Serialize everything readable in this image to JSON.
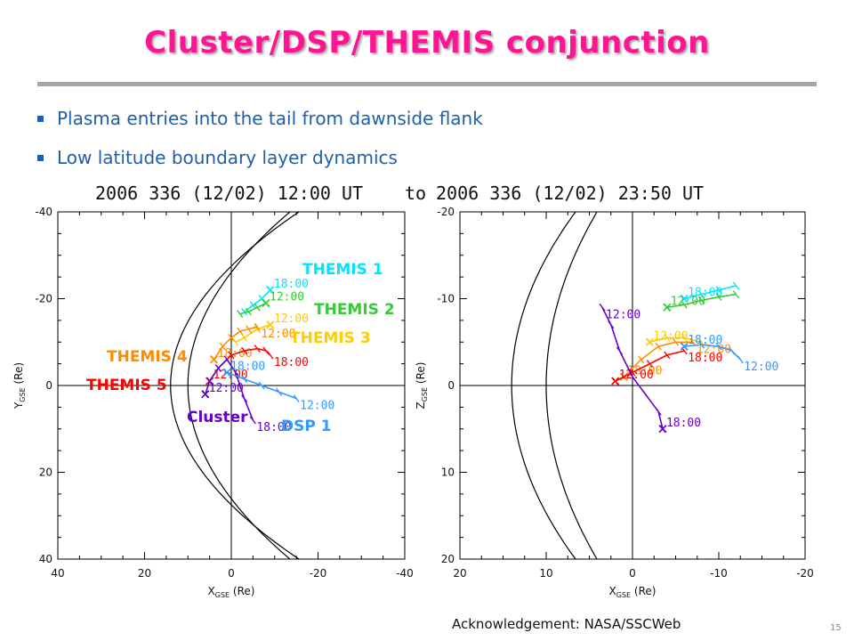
{
  "title": "Cluster/DSP/THEMIS conjunction",
  "bullets": [
    "Plasma entries into the tail from dawnside flank",
    "Low latitude boundary layer dynamics"
  ],
  "acknowledgement": "Acknowledgement: NASA/SSCWeb",
  "page_number": "15",
  "chart_data": {
    "type": "line",
    "time_range_left": "2006 336 (12/02) 12:00 UT",
    "time_range_to": "to",
    "time_range_right": "2006 336 (12/02) 23:50 UT",
    "panels": [
      {
        "name": "xy",
        "xlabel": "X",
        "xlabel_sub": "GSE",
        "xlabel_unit": "(Re)",
        "ylabel": "Y",
        "ylabel_sub": "GSE",
        "ylabel_unit": "(Re)",
        "xlim": [
          40,
          -40
        ],
        "ylim": [
          -40,
          40
        ],
        "xticks": [
          40,
          20,
          0,
          -20,
          -40
        ],
        "yticks": [
          -40,
          -20,
          0,
          20,
          40
        ],
        "boundaries": [
          {
            "type": "parabola",
            "nose": 14,
            "a": 0.0185
          },
          {
            "type": "parabola",
            "nose": 10,
            "a": 0.0147
          }
        ],
        "series": [
          {
            "name": "THEMIS 1",
            "color": "#00e5ff",
            "x": [
              -9,
              -7,
              -5,
              -3
            ],
            "y": [
              -22,
              -20,
              -18.5,
              -17
            ],
            "times": [
              "18:00"
            ]
          },
          {
            "name": "THEMIS 2",
            "color": "#33cc33",
            "x": [
              -8,
              -6,
              -4,
              -2
            ],
            "y": [
              -19,
              -18,
              -17,
              -16.5
            ],
            "times": [
              "12:00"
            ]
          },
          {
            "name": "THEMIS 3",
            "color": "#ffcc00",
            "x": [
              -9,
              -6,
              -3,
              -1
            ],
            "y": [
              -14,
              -13,
              -11,
              -10
            ],
            "times": [
              "12:00"
            ]
          },
          {
            "name": "THEMIS 4",
            "color": "#ff8c00",
            "x": [
              4,
              2,
              0,
              -2,
              -4,
              -6
            ],
            "y": [
              -6,
              -9,
              -11,
              -12.5,
              -13,
              -13.5
            ],
            "times": [
              "18:00",
              "12:00"
            ]
          },
          {
            "name": "THEMIS 5",
            "color": "#ff0000",
            "x": [
              5,
              3,
              0,
              -3,
              -6,
              -8,
              -9
            ],
            "y": [
              -1,
              -4,
              -7,
              -8,
              -8.5,
              -8,
              -7
            ],
            "times": [
              "12:00",
              "18:00"
            ]
          },
          {
            "name": "Cluster",
            "color": "#6600cc",
            "x": [
              6,
              5,
              3,
              1,
              -1,
              -3,
              -5
            ],
            "y": [
              2,
              -1,
              -4,
              -6,
              -3,
              3,
              8
            ],
            "times": [
              "12:00",
              "18:00"
            ]
          },
          {
            "name": "DSP 1",
            "color": "#3399ff",
            "x": [
              1,
              -3,
              -7,
              -11,
              -15
            ],
            "y": [
              -3,
              -1.5,
              0,
              1.5,
              3
            ],
            "times": [
              "18:00",
              "12:00"
            ]
          }
        ]
      },
      {
        "name": "xz",
        "xlabel": "X",
        "xlabel_sub": "GSE",
        "xlabel_unit": "(Re)",
        "ylabel": "Z",
        "ylabel_sub": "GSE",
        "ylabel_unit": "(Re)",
        "xlim": [
          20,
          -20
        ],
        "ylim": [
          -20,
          20
        ],
        "xticks": [
          20,
          10,
          0,
          -10,
          -20
        ],
        "yticks": [
          20,
          10,
          0,
          -10,
          -20
        ],
        "boundaries": [
          {
            "type": "parabola",
            "nose": 14,
            "a": 0.0185
          },
          {
            "type": "parabola",
            "nose": 10,
            "a": 0.0147
          }
        ],
        "series": [
          {
            "name": "THEMIS 1",
            "color": "#00e5ff",
            "x": [
              -6,
              -8,
              -10,
              -12
            ],
            "y": [
              -10,
              -10.5,
              -11,
              -11.5
            ],
            "times": [
              "18:00"
            ]
          },
          {
            "name": "THEMIS 2",
            "color": "#33cc33",
            "x": [
              -4,
              -6,
              -8,
              -10,
              -12
            ],
            "y": [
              -9,
              -9.3,
              -9.8,
              -10.2,
              -10.5
            ],
            "times": [
              "12:00"
            ]
          },
          {
            "name": "THEMIS 3",
            "color": "#ffcc00",
            "x": [
              -2,
              -4,
              -6,
              -8
            ],
            "y": [
              -5,
              -5.5,
              -5.5,
              -5
            ],
            "times": [
              "12:00"
            ]
          },
          {
            "name": "THEMIS 4",
            "color": "#ff8c00",
            "x": [
              1,
              -1,
              -3,
              -5,
              -7
            ],
            "y": [
              -1,
              -3,
              -4.5,
              -5,
              -5
            ],
            "times": [
              "18:00",
              "12:00"
            ]
          },
          {
            "name": "THEMIS 5",
            "color": "#ff0000",
            "x": [
              2,
              0,
              -2,
              -4,
              -6
            ],
            "y": [
              -0.5,
              -1.5,
              -2.5,
              -3.5,
              -4
            ],
            "times": [
              "12:00",
              "18:00"
            ]
          },
          {
            "name": "Cluster",
            "color": "#6600cc",
            "x": [
              -3.5,
              -3,
              -1.5,
              0,
              1.5,
              2.5,
              3.5
            ],
            "y": [
              5,
              3,
              1,
              -1,
              -4,
              -7,
              -9
            ],
            "times": [
              "18:00",
              "12:00"
            ]
          },
          {
            "name": "DSP 1",
            "color": "#3399ff",
            "x": [
              -6,
              -8,
              -10,
              -11.5,
              -12.5
            ],
            "y": [
              -4.5,
              -4.7,
              -4.5,
              -4,
              -3
            ],
            "times": [
              "18:00",
              "12:00"
            ]
          }
        ]
      }
    ],
    "labels": [
      {
        "text": "THEMIS 1",
        "color": "#00e5ff"
      },
      {
        "text": "THEMIS 2",
        "color": "#33cc33"
      },
      {
        "text": "THEMIS 3",
        "color": "#ffcc00"
      },
      {
        "text": "THEMIS 4",
        "color": "#ff8c00"
      },
      {
        "text": "THEMIS 5",
        "color": "#ff0000"
      },
      {
        "text": "Cluster",
        "color": "#6600cc"
      },
      {
        "text": "DSP 1",
        "color": "#3399ff"
      }
    ]
  }
}
